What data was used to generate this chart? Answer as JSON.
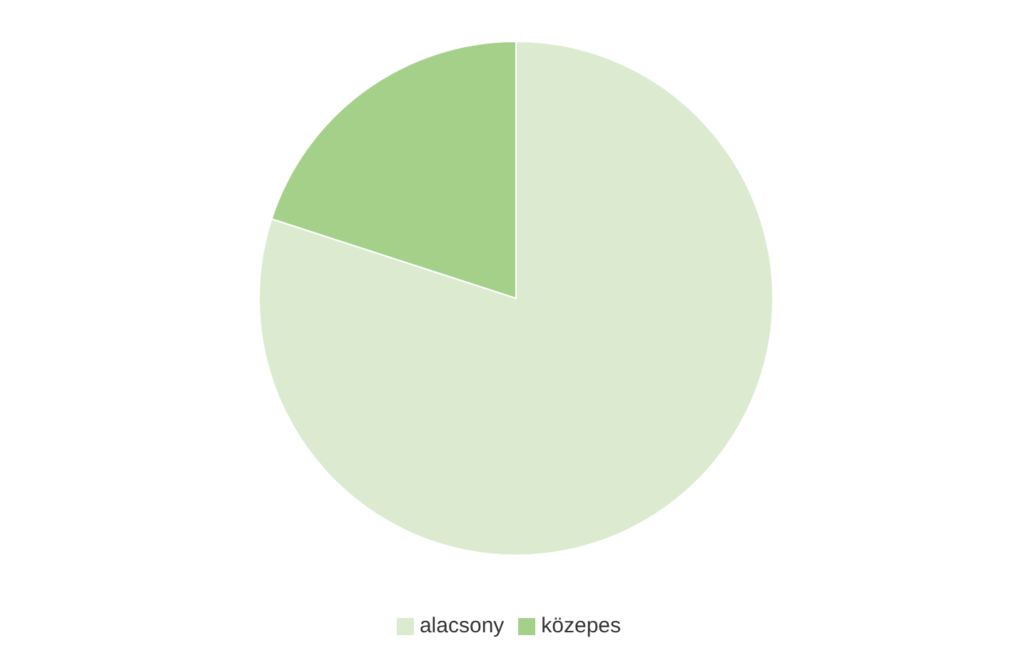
{
  "chart_data": {
    "type": "pie",
    "categories": [
      "alacsony",
      "közepes"
    ],
    "values": [
      80,
      20
    ],
    "colors": [
      "#dcebd0",
      "#a5d08a"
    ],
    "legend": "bottom"
  }
}
